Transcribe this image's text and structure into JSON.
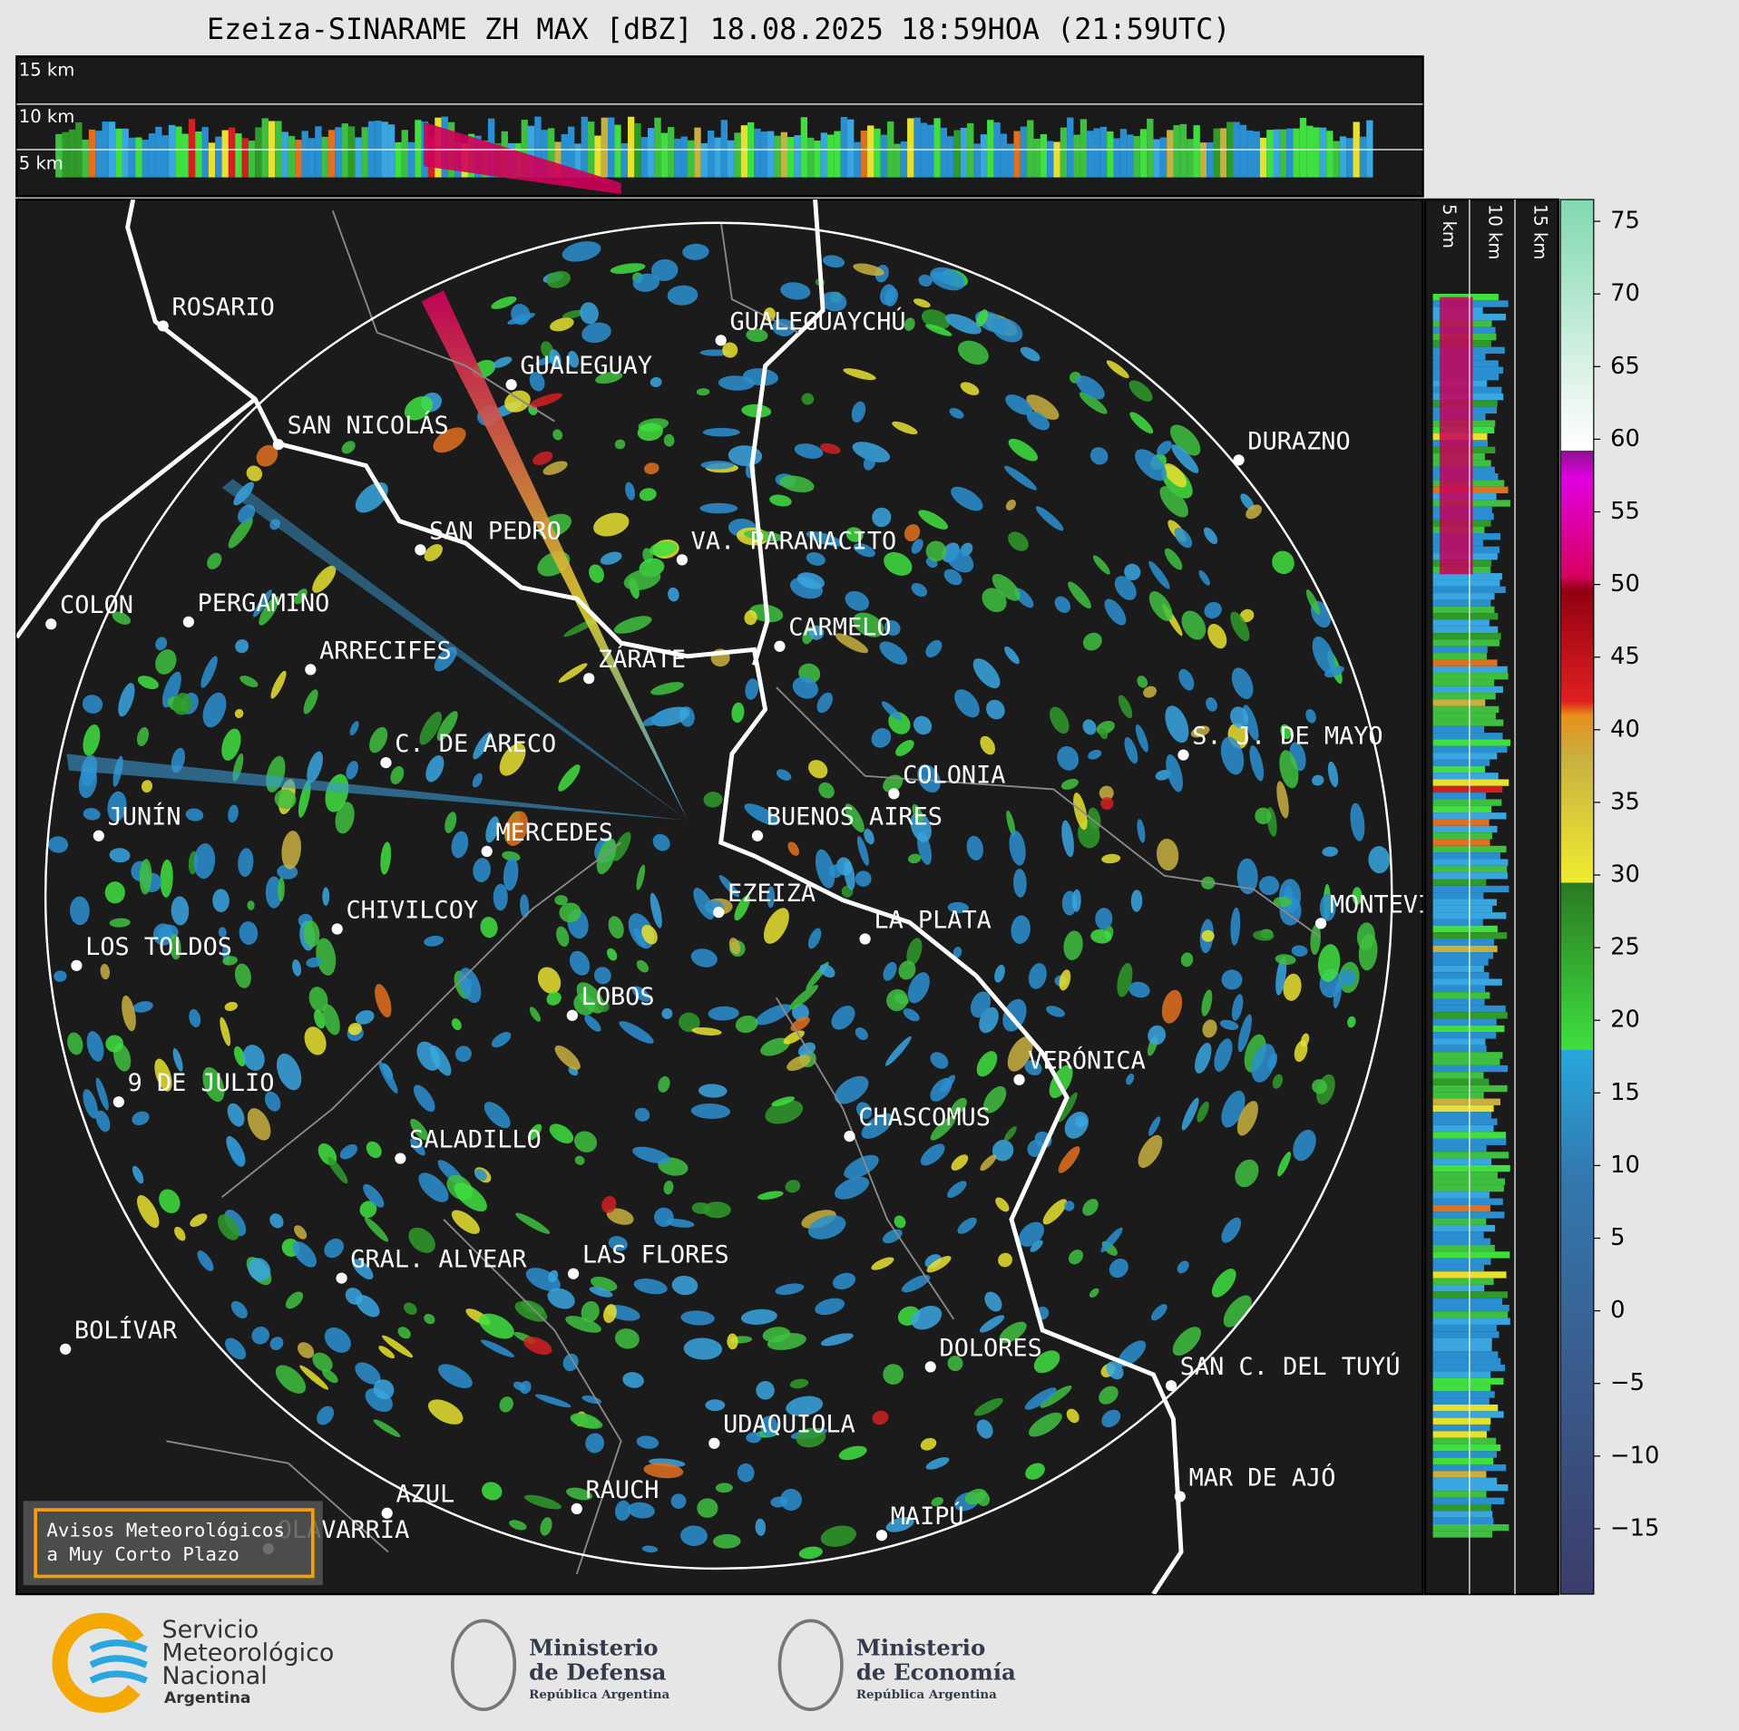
{
  "header": {
    "title": "Ezeiza-SINARAME ZH MAX [dBZ] 18.08.2025 18:59HOA (21:59UTC)"
  },
  "cross_section_top": {
    "height_labels": [
      "15 km",
      "10 km",
      "5 km"
    ]
  },
  "cross_section_side": {
    "height_labels": [
      "5 km",
      "10 km",
      "15 km"
    ]
  },
  "map": {
    "cities": [
      "ROSARIO",
      "GUALEGUAYCHÚ",
      "GUALEGUAY",
      "SAN NICOLÁS",
      "DURAZNO",
      "SAN PEDRO",
      "VA. PARANACITO",
      "COLON",
      "PERGAMINO",
      "CARMELO",
      "ARRECIFES",
      "ZÁRATE",
      "C. DE ARECO",
      "S. J. DE MAYO",
      "COLONIA",
      "BUENOS AIRES",
      "JUNÍN",
      "MERCEDES",
      "EZEIZA",
      "MONTEVIDEO",
      "CHIVILCOY",
      "LA PLATA",
      "LOS TOLDOS",
      "LOBOS",
      "VERÓNICA",
      "9 DE JULIO",
      "CHASCOMUS",
      "SALADILLO",
      "GRAL. ALVEAR",
      "LAS FLORES",
      "BOLÍVAR",
      "DOLORES",
      "SAN C. DEL TUYÚ",
      "UDAQUIOLA",
      "MAR DE AJÓ",
      "RAUCH",
      "AZUL",
      "OLAVARRÍA",
      "MAIPÚ"
    ]
  },
  "colorbar": {
    "lim": [
      -19.5,
      76.5
    ],
    "ticks": [
      {
        "value": -15,
        "label": "−15"
      },
      {
        "value": -10,
        "label": "−10"
      },
      {
        "value": -5,
        "label": "−5"
      },
      0,
      5,
      10,
      15,
      20,
      25,
      30,
      35,
      40,
      45,
      50,
      55,
      60,
      65,
      70,
      75
    ]
  },
  "warning_box": {
    "lines": [
      "Avisos Meteorológicos",
      "a Muy Corto Plazo"
    ]
  },
  "footer": {
    "smn": {
      "lines": [
        "Servicio",
        "Meteorológico",
        "Nacional"
      ],
      "country": "Argentina"
    },
    "defensa": {
      "lines": [
        "Ministerio",
        "de Defensa"
      ],
      "sub": "República Argentina"
    },
    "economia": {
      "lines": [
        "Ministerio",
        "de Economía"
      ],
      "sub": "República Argentina"
    }
  }
}
